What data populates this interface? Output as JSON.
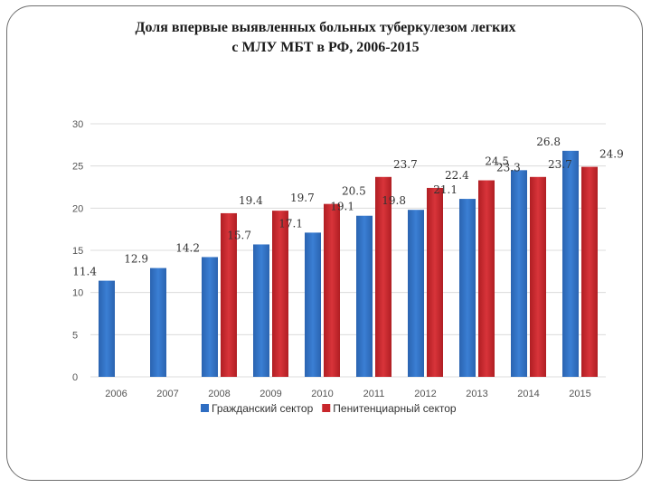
{
  "slide": {
    "title_line1": "Доля впервые выявленных больных туберкулезом легких",
    "title_line2": "с МЛУ МБТ в РФ, 2006-2015"
  },
  "chart_data": {
    "type": "bar",
    "title": "Доля впервые выявленных больных туберкулезом легких с МЛУ МБТ в РФ, 2006-2015",
    "categories": [
      "2006",
      "2007",
      "2008",
      "2009",
      "2010",
      "2011",
      "2012",
      "2013",
      "2014",
      "2015"
    ],
    "series": [
      {
        "name": "Гражданский сектор",
        "color": "#2f6ec2",
        "values": [
          11.4,
          12.9,
          14.2,
          15.7,
          17.1,
          19.1,
          19.8,
          21.1,
          24.5,
          26.8
        ]
      },
      {
        "name": "Пенитенциарный сектор",
        "color": "#c8262b",
        "values": [
          null,
          null,
          19.4,
          19.7,
          20.5,
          23.7,
          22.4,
          23.3,
          23.7,
          24.9
        ]
      }
    ],
    "y_ticks": [
      "0",
      "5",
      "10",
      "15",
      "20",
      "25",
      "30"
    ],
    "ylim": [
      0,
      30
    ],
    "grid": true,
    "legend_position": "bottom"
  }
}
